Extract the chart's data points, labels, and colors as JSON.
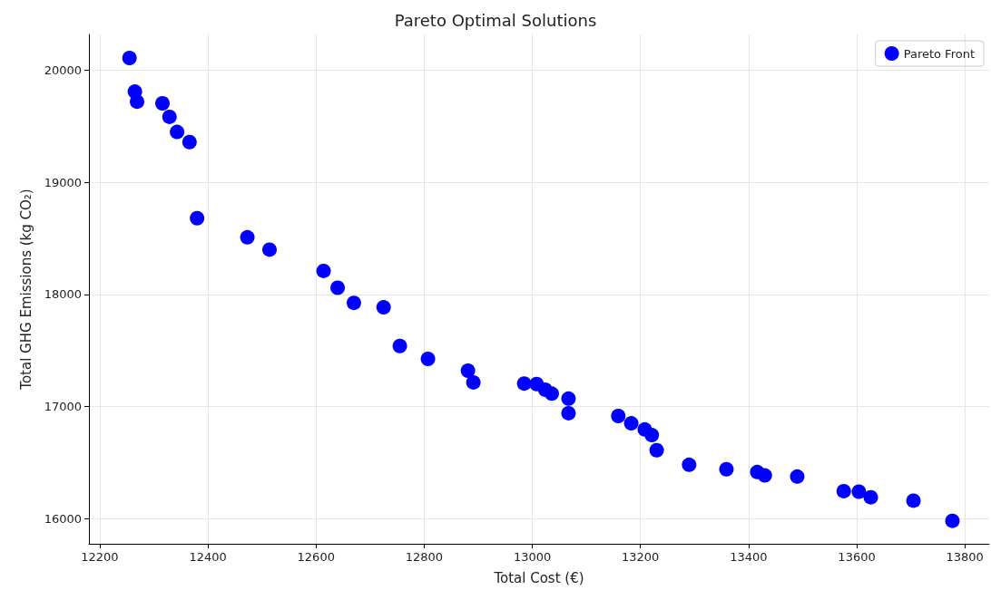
{
  "chart_data": {
    "type": "scatter",
    "title": "Pareto Optimal Solutions",
    "xlabel": "Total Cost (€)",
    "ylabel": "Total GHG Emissions (kg CO₂)",
    "xlim": [
      12180,
      13845
    ],
    "xticks": [
      12200,
      12400,
      12600,
      12800,
      13000,
      13200,
      13400,
      13600,
      13800
    ],
    "ylim": [
      15775,
      20320
    ],
    "yticks": [
      16000,
      17000,
      18000,
      19000,
      20000
    ],
    "grid": true,
    "legend": "top right",
    "marker": "circle",
    "series": [
      {
        "name": "Pareto Front",
        "color": "#0000ff",
        "x": [
          12255,
          12265,
          12269,
          12316,
          12329,
          12343,
          12366,
          12380,
          12473,
          12514,
          12614,
          12640,
          12670,
          12725,
          12755,
          12807,
          12881,
          12891,
          12985,
          13008,
          13024,
          13036,
          13067,
          13067,
          13159,
          13183,
          13208,
          13221,
          13230,
          13290,
          13359,
          13416,
          13430,
          13490,
          13576,
          13604,
          13626,
          13705,
          13777
        ],
        "values": [
          20110,
          19810,
          19720,
          19705,
          19585,
          19450,
          19360,
          18680,
          18510,
          18400,
          18210,
          18060,
          17925,
          17885,
          17540,
          17425,
          17320,
          17215,
          17205,
          17200,
          17150,
          17115,
          17070,
          16940,
          16915,
          16850,
          16795,
          16745,
          16610,
          16480,
          16440,
          16415,
          16385,
          16375,
          16245,
          16240,
          16190,
          16160,
          15980
        ]
      }
    ]
  }
}
